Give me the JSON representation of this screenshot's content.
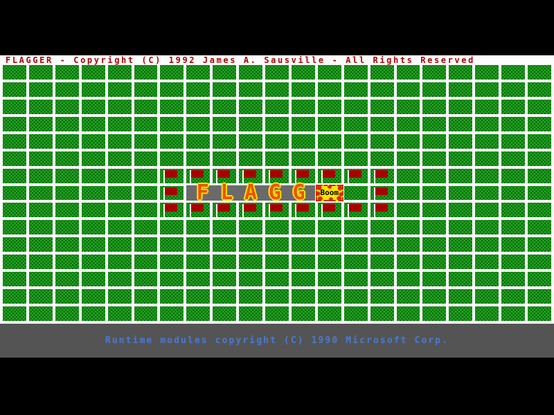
{
  "title_bar": {
    "text": "FLAGGER - Copyright (C) 1992 James A. Sausville - All Rights Reserved"
  },
  "status_bar": {
    "text": "Runtime modules copyright (C) 1990 Microsoft Corp."
  },
  "banner": {
    "text": "FLAGG"
  },
  "boom": {
    "text": "Boom"
  },
  "grid": {
    "rows": 15,
    "cols": 21,
    "flag_cells": [
      [
        6,
        6
      ],
      [
        6,
        7
      ],
      [
        6,
        8
      ],
      [
        6,
        9
      ],
      [
        6,
        10
      ],
      [
        6,
        11
      ],
      [
        6,
        12
      ],
      [
        6,
        13
      ],
      [
        6,
        14
      ],
      [
        7,
        6
      ],
      [
        7,
        14
      ],
      [
        8,
        6
      ],
      [
        8,
        7
      ],
      [
        8,
        8
      ],
      [
        8,
        9
      ],
      [
        8,
        10
      ],
      [
        8,
        11
      ],
      [
        8,
        12
      ],
      [
        8,
        13
      ],
      [
        8,
        14
      ]
    ],
    "banner_row": 7,
    "banner_col_start": 7,
    "banner_col_end": 11,
    "boom_row": 7,
    "boom_col": 12
  },
  "colors": {
    "black": "#000000",
    "bar_white": "#fcfcfc",
    "title_red": "#b00000",
    "tile_green": "#1fa51f",
    "tile_dot": "#0b620b",
    "pole_white": "#f2fff2",
    "flag_red": "#a80000",
    "banner_gray": "#6a6a6a",
    "letter_orange": "#ee5400",
    "letter_yellow": "#ffe400",
    "boom_yellow": "#ffe400",
    "boom_red": "#d82800",
    "status_gray": "#545454",
    "status_blue": "#4a7ad2"
  }
}
